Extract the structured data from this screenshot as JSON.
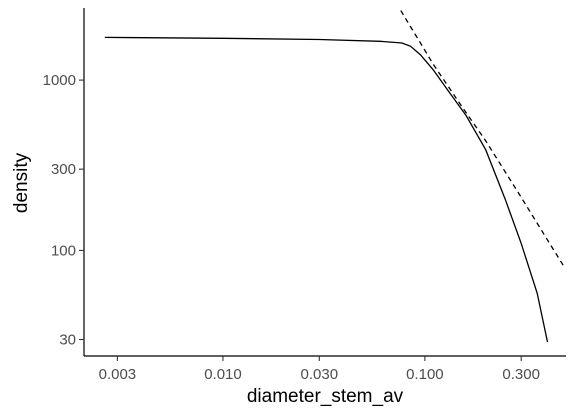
{
  "chart_data": {
    "type": "line",
    "xlabel": "diameter_stem_av",
    "ylabel": "density",
    "x_scale": "log10",
    "y_scale": "log10",
    "xlim": [
      0.00205,
      0.5
    ],
    "ylim": [
      24,
      2650
    ],
    "x_ticks": [
      {
        "value": 0.003,
        "label": "0.003"
      },
      {
        "value": 0.01,
        "label": "0.010"
      },
      {
        "value": 0.03,
        "label": "0.030"
      },
      {
        "value": 0.1,
        "label": "0.100"
      },
      {
        "value": 0.3,
        "label": "0.300"
      }
    ],
    "y_ticks": [
      {
        "value": 30,
        "label": "30"
      },
      {
        "value": 100,
        "label": "100"
      },
      {
        "value": 300,
        "label": "300"
      },
      {
        "value": 1000,
        "label": "1000"
      }
    ],
    "grid": false,
    "legend": "none",
    "series": [
      {
        "style": "solid",
        "color": "#000000",
        "x": [
          0.0026,
          0.01,
          0.03,
          0.06,
          0.077,
          0.085,
          0.095,
          0.11,
          0.13,
          0.16,
          0.2,
          0.25,
          0.3,
          0.36,
          0.405
        ],
        "y": [
          1780,
          1760,
          1730,
          1690,
          1650,
          1580,
          1410,
          1150,
          870,
          620,
          390,
          200,
          110,
          56,
          29
        ]
      },
      {
        "style": "dashed",
        "color": "#000000",
        "x": [
          0.076,
          0.09,
          0.11,
          0.15,
          0.2,
          0.3,
          0.4,
          0.49
        ],
        "y": [
          2560,
          1840,
          1240,
          720,
          440,
          205,
          118,
          80
        ]
      }
    ]
  }
}
